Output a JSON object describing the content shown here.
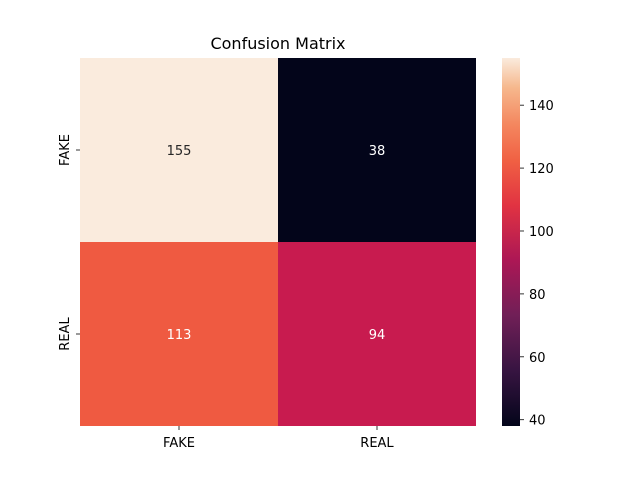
{
  "chart_data": {
    "type": "heatmap",
    "title": "Confusion Matrix",
    "row_labels": [
      "FAKE",
      "REAL"
    ],
    "col_labels": [
      "FAKE",
      "REAL"
    ],
    "values": [
      [
        155,
        38
      ],
      [
        113,
        94
      ]
    ],
    "colormap": "rocket",
    "colorbar": {
      "min": 38,
      "max": 155,
      "ticks": [
        40,
        60,
        80,
        100,
        120,
        140
      ]
    },
    "cell_colors": {
      "155": "#faebdd",
      "38": "#03051a",
      "113": "#ef5a41",
      "94": "#c81b4f"
    },
    "annotation_colors": {
      "light_bg": "#262626",
      "dark_bg": "#ffffff"
    }
  }
}
